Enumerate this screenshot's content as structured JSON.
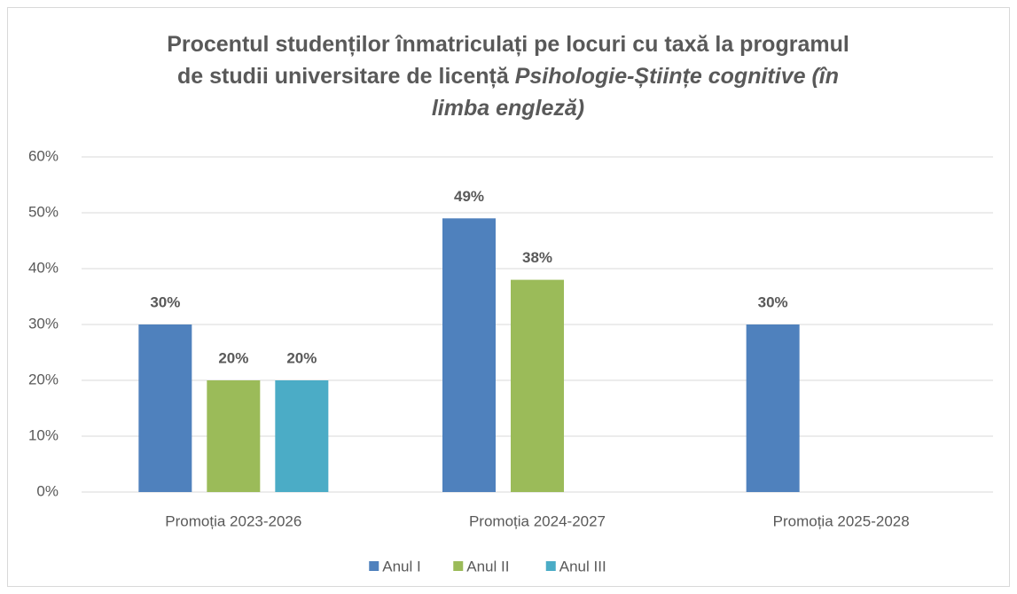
{
  "chart_data": {
    "type": "bar",
    "title": "Procentul studenților înmatriculați pe locuri cu taxă la programul de studii universitare de licență",
    "title_emphasis": "Psihologie-Științe cognitive (în limba engleză)",
    "categories": [
      "Promoția 2023-2026",
      "Promoția 2024-2027",
      "Promoția 2025-2028"
    ],
    "series": [
      {
        "name": "Anul I",
        "color": "#4f81bd",
        "values": [
          30,
          49,
          30
        ],
        "value_labels": [
          "30%",
          "49%",
          "30%"
        ]
      },
      {
        "name": "Anul II",
        "color": "#9bbb59",
        "values": [
          20,
          38,
          null
        ],
        "value_labels": [
          "20%",
          "38%",
          null
        ]
      },
      {
        "name": "Anul III",
        "color": "#4bacc6",
        "values": [
          20,
          null,
          null
        ],
        "value_labels": [
          "20%",
          null,
          null
        ]
      }
    ],
    "ylim": [
      0,
      60
    ],
    "yticks": [
      {
        "value": 0,
        "label": "0%"
      },
      {
        "value": 10,
        "label": "10%"
      },
      {
        "value": 20,
        "label": "20%"
      },
      {
        "value": 30,
        "label": "30%"
      },
      {
        "value": 40,
        "label": "40%"
      },
      {
        "value": 50,
        "label": "50%"
      },
      {
        "value": 60,
        "label": "60%"
      }
    ],
    "grid": true,
    "legend": "bottom"
  }
}
